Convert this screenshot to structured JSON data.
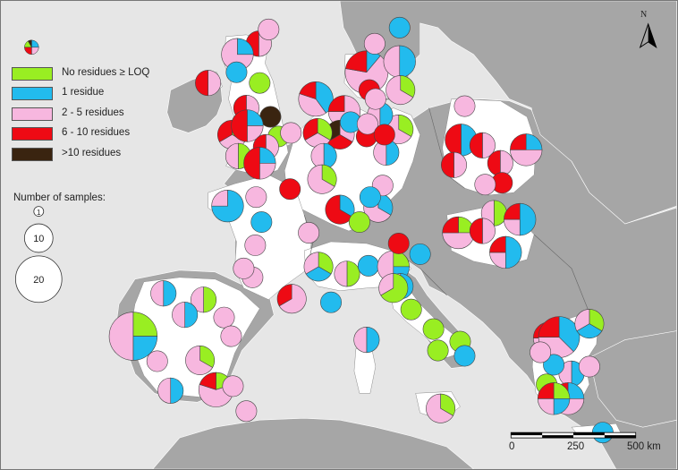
{
  "legend": {
    "items": [
      {
        "label": "No residues ≥ LOQ",
        "color": "#99ee22"
      },
      {
        "label": "1 residue",
        "color": "#22bbee"
      },
      {
        "label": "2 - 5 residues",
        "color": "#f7b7df"
      },
      {
        "label": "6 - 10 residues",
        "color": "#ee0a14"
      },
      {
        "label": ">10 residues",
        "color": "#3a2410"
      }
    ],
    "samples_title": "Number of samples:",
    "sizes": [
      "1",
      "10",
      "20"
    ]
  },
  "scale_bar": {
    "labels": [
      "0",
      "250",
      "500 km"
    ]
  },
  "north_arrow": {
    "label": "N"
  },
  "colors": {
    "sea": "#ffffff",
    "land_included": "#ffffff",
    "land_other": "#a6a6a6"
  },
  "pies": [
    {
      "region": "north-scotland",
      "values": [
        0,
        0,
        1,
        1,
        0
      ]
    },
    {
      "region": "highlands",
      "values": [
        0,
        1,
        3,
        0,
        0
      ]
    },
    {
      "region": "orkney",
      "values": [
        0,
        0,
        1,
        0,
        0
      ]
    },
    {
      "region": "ireland-east",
      "values": [
        0,
        0,
        1,
        1,
        0
      ]
    },
    {
      "region": "uk-north-east",
      "values": [
        1,
        0,
        0,
        0,
        0
      ]
    },
    {
      "region": "uk-yorkshire",
      "values": [
        0,
        1,
        0,
        0,
        0
      ]
    },
    {
      "region": "uk-midlands-n",
      "values": [
        0,
        0,
        1,
        1,
        0
      ]
    },
    {
      "region": "uk-midlands",
      "values": [
        0,
        0,
        0,
        0,
        1
      ]
    },
    {
      "region": "uk-wales",
      "values": [
        1,
        0,
        1,
        1,
        0
      ]
    },
    {
      "region": "uk-central",
      "values": [
        0,
        1,
        1,
        2,
        0
      ]
    },
    {
      "region": "uk-east",
      "values": [
        1,
        0,
        0,
        0,
        0
      ]
    },
    {
      "region": "uk-south-w",
      "values": [
        1,
        0,
        1,
        0,
        0
      ]
    },
    {
      "region": "uk-south",
      "values": [
        0,
        0,
        1,
        1,
        0
      ]
    },
    {
      "region": "uk-london",
      "values": [
        0,
        1,
        1,
        2,
        0
      ]
    },
    {
      "region": "denmark-sweden",
      "values": [
        0,
        1,
        6,
        2,
        0
      ]
    },
    {
      "region": "norway-s",
      "values": [
        0,
        0,
        1,
        0,
        0
      ]
    },
    {
      "region": "sweden-s",
      "values": [
        0,
        2,
        2,
        0,
        0
      ]
    },
    {
      "region": "sweden-se",
      "values": [
        1,
        0,
        2,
        0,
        0
      ]
    },
    {
      "region": "denmark",
      "values": [
        0,
        0,
        0,
        1,
        0
      ]
    },
    {
      "region": "baltic",
      "values": [
        0,
        1,
        0,
        0,
        0
      ]
    },
    {
      "region": "netherlands-n",
      "values": [
        0,
        2,
        2,
        1,
        0
      ]
    },
    {
      "region": "germany-nw",
      "values": [
        0,
        0,
        3,
        1,
        0
      ]
    },
    {
      "region": "germany-n",
      "values": [
        0,
        0,
        1,
        1,
        1
      ]
    },
    {
      "region": "germany-ne",
      "values": [
        1,
        0,
        2,
        0,
        0
      ]
    },
    {
      "region": "germany-ne2",
      "values": [
        0,
        1,
        1,
        0,
        0
      ]
    },
    {
      "region": "poland-n",
      "values": [
        0,
        0,
        1,
        0,
        0
      ]
    },
    {
      "region": "belgium",
      "values": [
        0,
        1,
        0,
        0,
        0
      ]
    },
    {
      "region": "germany-w",
      "values": [
        0,
        0,
        1,
        0,
        0
      ]
    },
    {
      "region": "germany-c",
      "values": [
        0,
        0,
        0,
        1,
        0
      ]
    },
    {
      "region": "germany-c2",
      "values": [
        0,
        0,
        1,
        0,
        0
      ]
    },
    {
      "region": "germany-e",
      "values": [
        0,
        1,
        1,
        0,
        0
      ]
    },
    {
      "region": "poland-w",
      "values": [
        0,
        0,
        0,
        1,
        0
      ]
    },
    {
      "region": "germany-e2",
      "values": [
        1,
        0,
        1,
        1,
        0
      ]
    },
    {
      "region": "germany-sw",
      "values": [
        0,
        1,
        1,
        0,
        0
      ]
    },
    {
      "region": "germany-s",
      "values": [
        1,
        0,
        2,
        0,
        0
      ]
    },
    {
      "region": "germany-sw2",
      "values": [
        0,
        1,
        0,
        2,
        0
      ]
    },
    {
      "region": "germany-se",
      "values": [
        0,
        1,
        2,
        0,
        0
      ]
    },
    {
      "region": "germany-s2",
      "values": [
        1,
        0,
        0,
        0,
        0
      ]
    },
    {
      "region": "poland-c",
      "values": [
        0,
        0,
        1,
        0,
        0
      ]
    },
    {
      "region": "poland-c2",
      "values": [
        0,
        2,
        0,
        2,
        0
      ]
    },
    {
      "region": "poland-c3",
      "values": [
        0,
        0,
        1,
        1,
        0
      ]
    },
    {
      "region": "poland-e",
      "values": [
        0,
        1,
        2,
        1,
        0
      ]
    },
    {
      "region": "poland-w2",
      "values": [
        0,
        0,
        1,
        1,
        0
      ]
    },
    {
      "region": "poland-se",
      "values": [
        0,
        0,
        1,
        1,
        0
      ]
    },
    {
      "region": "poland-s",
      "values": [
        0,
        0,
        0,
        1,
        0
      ]
    },
    {
      "region": "poland-s2",
      "values": [
        0,
        0,
        1,
        0,
        0
      ]
    },
    {
      "region": "slovakia",
      "values": [
        1,
        0,
        1,
        0,
        0
      ]
    },
    {
      "region": "hungary-w",
      "values": [
        1,
        0,
        2,
        1,
        0
      ]
    },
    {
      "region": "hungary-c",
      "values": [
        0,
        0,
        1,
        1,
        0
      ]
    },
    {
      "region": "hungary-e",
      "values": [
        0,
        2,
        1,
        1,
        0
      ]
    },
    {
      "region": "romania-w",
      "values": [
        0,
        2,
        1,
        1,
        0
      ]
    },
    {
      "region": "france-nw",
      "values": [
        0,
        0,
        1,
        0,
        0
      ]
    },
    {
      "region": "france-n",
      "values": [
        0,
        0,
        0,
        1,
        0
      ]
    },
    {
      "region": "france-ne",
      "values": [
        0,
        0,
        1,
        0,
        0
      ]
    },
    {
      "region": "france-ne2",
      "values": [
        0,
        1,
        0,
        0,
        0
      ]
    },
    {
      "region": "france-w",
      "values": [
        0,
        3,
        1,
        0,
        0
      ]
    },
    {
      "region": "france-nw2",
      "values": [
        0,
        0,
        1,
        0,
        0
      ]
    },
    {
      "region": "france-c",
      "values": [
        0,
        1,
        0,
        0,
        0
      ]
    },
    {
      "region": "france-sw",
      "values": [
        0,
        0,
        1,
        0,
        0
      ]
    },
    {
      "region": "france-sw2",
      "values": [
        0,
        0,
        1,
        0,
        0
      ]
    },
    {
      "region": "france-se",
      "values": [
        1,
        1,
        1,
        0,
        0
      ]
    },
    {
      "region": "france-se2",
      "values": [
        1,
        0,
        1,
        0,
        0
      ]
    },
    {
      "region": "france-s",
      "values": [
        0,
        0,
        2,
        1,
        0
      ]
    },
    {
      "region": "france-s2",
      "values": [
        0,
        1,
        0,
        0,
        0
      ]
    },
    {
      "region": "swiss",
      "values": [
        0,
        1,
        0,
        0,
        0
      ]
    },
    {
      "region": "italy-nw",
      "values": [
        1,
        1,
        2,
        0,
        0
      ]
    },
    {
      "region": "italy-n",
      "values": [
        0,
        1,
        1,
        0,
        0
      ]
    },
    {
      "region": "italy-n2",
      "values": [
        0,
        0,
        0,
        1,
        0
      ]
    },
    {
      "region": "italy-ne",
      "values": [
        0,
        1,
        0,
        0,
        0
      ]
    },
    {
      "region": "italy-c",
      "values": [
        2,
        0,
        1,
        0,
        0
      ]
    },
    {
      "region": "italy-c2",
      "values": [
        1,
        0,
        0,
        0,
        0
      ]
    },
    {
      "region": "italy-c3",
      "values": [
        1,
        0,
        0,
        0,
        0
      ]
    },
    {
      "region": "italy-s",
      "values": [
        1,
        0,
        0,
        0,
        0
      ]
    },
    {
      "region": "italy-s2",
      "values": [
        1,
        0,
        0,
        0,
        0
      ]
    },
    {
      "region": "sardinia",
      "values": [
        0,
        1,
        1,
        0,
        0
      ]
    },
    {
      "region": "italy-se",
      "values": [
        0,
        1,
        0,
        0,
        0
      ]
    },
    {
      "region": "sicily",
      "values": [
        1,
        0,
        2,
        0,
        0
      ]
    },
    {
      "region": "spain-n",
      "values": [
        0,
        0,
        1,
        0,
        0
      ]
    },
    {
      "region": "spain-nw",
      "values": [
        0,
        1,
        1,
        0,
        0
      ]
    },
    {
      "region": "spain-n2",
      "values": [
        1,
        0,
        1,
        0,
        0
      ]
    },
    {
      "region": "spain-ne",
      "values": [
        0,
        1,
        1,
        0,
        0
      ]
    },
    {
      "region": "spain-ne2",
      "values": [
        0,
        0,
        1,
        0,
        0
      ]
    },
    {
      "region": "spain-e",
      "values": [
        0,
        0,
        1,
        0,
        0
      ]
    },
    {
      "region": "spain-c",
      "values": [
        2,
        1,
        1,
        0,
        0
      ]
    },
    {
      "region": "portugal",
      "values": [
        3,
        3,
        6,
        0,
        0
      ]
    },
    {
      "region": "spain-c2",
      "values": [
        1,
        0,
        2,
        0,
        0
      ]
    },
    {
      "region": "spain-c3",
      "values": [
        0,
        0,
        1,
        0,
        0
      ]
    },
    {
      "region": "spain-s",
      "values": [
        0,
        1,
        1,
        0,
        0
      ]
    },
    {
      "region": "spain-se",
      "values": [
        1,
        0,
        3,
        1,
        0
      ]
    },
    {
      "region": "spain-s2",
      "values": [
        0,
        0,
        1,
        0,
        0
      ]
    },
    {
      "region": "spain-s3",
      "values": [
        0,
        0,
        1,
        0,
        0
      ]
    },
    {
      "region": "greece-n",
      "values": [
        1,
        0,
        2,
        1,
        0
      ]
    },
    {
      "region": "greece-ne",
      "values": [
        0,
        3,
        3,
        2,
        0
      ]
    },
    {
      "region": "greece-ne2",
      "values": [
        1,
        1,
        1,
        0,
        0
      ]
    },
    {
      "region": "greece-c",
      "values": [
        0,
        1,
        1,
        0,
        0
      ]
    },
    {
      "region": "greece-c2",
      "values": [
        0,
        1,
        0,
        0,
        0
      ]
    },
    {
      "region": "greece-w",
      "values": [
        0,
        0,
        1,
        0,
        0
      ]
    },
    {
      "region": "greece-e",
      "values": [
        0,
        0,
        1,
        0,
        0
      ]
    },
    {
      "region": "greece-w2",
      "values": [
        1,
        0,
        0,
        0,
        0
      ]
    },
    {
      "region": "greece-s",
      "values": [
        0,
        1,
        2,
        1,
        0
      ]
    },
    {
      "region": "greece-s2",
      "values": [
        1,
        1,
        1,
        1,
        0
      ]
    },
    {
      "region": "crete",
      "values": [
        0,
        1,
        0,
        0,
        0
      ]
    }
  ]
}
